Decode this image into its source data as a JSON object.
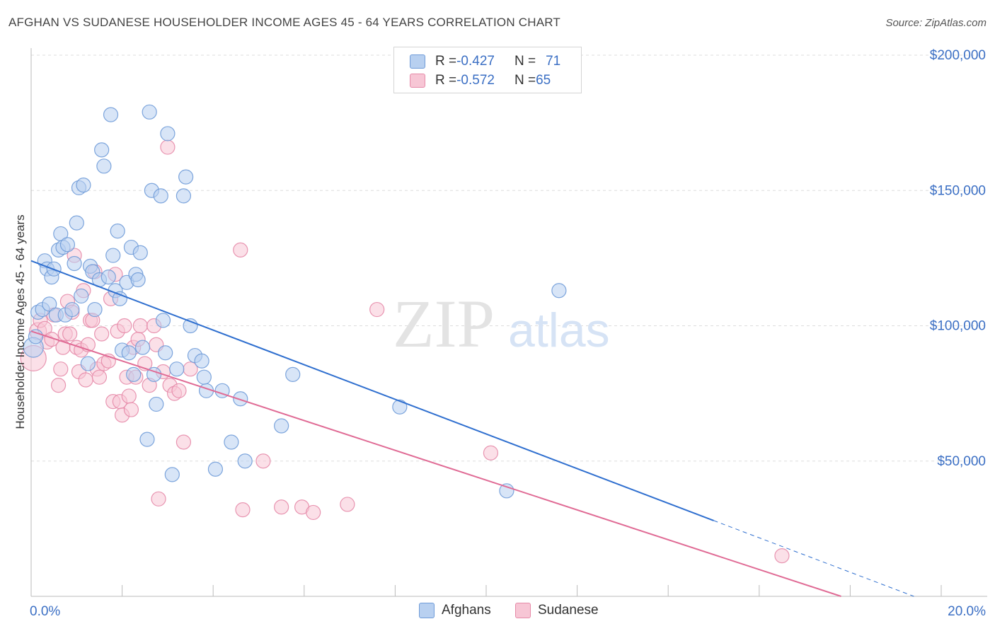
{
  "title": "AFGHAN VS SUDANESE HOUSEHOLDER INCOME AGES 45 - 64 YEARS CORRELATION CHART",
  "source": "Source: ZipAtlas.com",
  "watermark": {
    "zip": "ZIP",
    "atlas": "atlas"
  },
  "legend_top": {
    "rows": [
      {
        "r_label": "R = ",
        "r_value": "-0.427",
        "n_label": "N = ",
        "n_value": "71"
      },
      {
        "r_label": "R = ",
        "r_value": "-0.572",
        "n_label": "N = ",
        "n_value": "65"
      }
    ]
  },
  "legend_bottom": {
    "afghans": "Afghans",
    "sudanese": "Sudanese"
  },
  "colors": {
    "afghan_fill": "#b8d0f0",
    "afghan_stroke": "#6f9bd8",
    "afghan_line": "#2f6fcf",
    "sudanese_fill": "#f7c6d5",
    "sudanese_stroke": "#e68aa8",
    "sudanese_line": "#e06b95",
    "axis_label": "#3b6fc4",
    "grid": "#dddddd"
  },
  "chart_data": {
    "type": "scatter",
    "title": "AFGHAN VS SUDANESE HOUSEHOLDER INCOME AGES 45 - 64 YEARS CORRELATION CHART",
    "xlabel": "",
    "ylabel": "Householder Income Ages 45 - 64 years",
    "xlim": [
      0,
      20
    ],
    "ylim": [
      0,
      200000
    ],
    "x_tick_labels": [
      "0.0%",
      "20.0%"
    ],
    "y_ticks": [
      50000,
      100000,
      150000,
      200000
    ],
    "y_tick_labels": [
      "$50,000",
      "$100,000",
      "$150,000",
      "$200,000"
    ],
    "series": [
      {
        "name": "Afghans",
        "r": -0.427,
        "n": 71,
        "trend": {
          "x0": 0,
          "y0": 124000,
          "x1": 15.0,
          "y1": 28000,
          "dash_x1": 19.4,
          "dash_y1": 0
        },
        "points": [
          [
            0.05,
            92000,
            14
          ],
          [
            0.1,
            96000,
            10
          ],
          [
            0.15,
            105000,
            10
          ],
          [
            0.25,
            106000,
            10
          ],
          [
            0.3,
            124000,
            10
          ],
          [
            0.35,
            121000,
            10
          ],
          [
            0.4,
            108000,
            10
          ],
          [
            0.45,
            118000,
            10
          ],
          [
            0.5,
            121000,
            10
          ],
          [
            0.55,
            104000,
            10
          ],
          [
            0.6,
            128000,
            10
          ],
          [
            0.65,
            134000,
            10
          ],
          [
            0.7,
            129000,
            10
          ],
          [
            0.75,
            104000,
            10
          ],
          [
            0.8,
            130000,
            10
          ],
          [
            0.9,
            106000,
            10
          ],
          [
            0.95,
            123000,
            10
          ],
          [
            1.0,
            138000,
            10
          ],
          [
            1.05,
            151000,
            10
          ],
          [
            1.1,
            111000,
            10
          ],
          [
            1.15,
            152000,
            10
          ],
          [
            1.25,
            86000,
            10
          ],
          [
            1.3,
            122000,
            10
          ],
          [
            1.35,
            120000,
            10
          ],
          [
            1.4,
            106000,
            10
          ],
          [
            1.5,
            117000,
            10
          ],
          [
            1.55,
            165000,
            10
          ],
          [
            1.6,
            159000,
            10
          ],
          [
            1.7,
            118000,
            10
          ],
          [
            1.75,
            178000,
            10
          ],
          [
            1.8,
            126000,
            10
          ],
          [
            1.85,
            113000,
            10
          ],
          [
            1.9,
            135000,
            10
          ],
          [
            1.95,
            110000,
            10
          ],
          [
            2.0,
            91000,
            10
          ],
          [
            2.1,
            116000,
            10
          ],
          [
            2.15,
            90000,
            10
          ],
          [
            2.2,
            129000,
            10
          ],
          [
            2.25,
            82000,
            10
          ],
          [
            2.3,
            119000,
            10
          ],
          [
            2.35,
            117000,
            10
          ],
          [
            2.4,
            127000,
            10
          ],
          [
            2.45,
            92000,
            10
          ],
          [
            2.55,
            58000,
            10
          ],
          [
            2.6,
            179000,
            10
          ],
          [
            2.65,
            150000,
            10
          ],
          [
            2.7,
            82000,
            10
          ],
          [
            2.75,
            71000,
            10
          ],
          [
            2.85,
            148000,
            10
          ],
          [
            2.9,
            102000,
            10
          ],
          [
            2.95,
            90000,
            10
          ],
          [
            3.0,
            171000,
            10
          ],
          [
            3.1,
            45000,
            10
          ],
          [
            3.2,
            84000,
            10
          ],
          [
            3.35,
            148000,
            10
          ],
          [
            3.4,
            155000,
            10
          ],
          [
            3.5,
            100000,
            10
          ],
          [
            3.6,
            89000,
            10
          ],
          [
            3.75,
            87000,
            10
          ],
          [
            3.85,
            76000,
            10
          ],
          [
            3.8,
            81000,
            10
          ],
          [
            4.05,
            47000,
            10
          ],
          [
            4.2,
            76000,
            10
          ],
          [
            4.4,
            57000,
            10
          ],
          [
            4.6,
            73000,
            10
          ],
          [
            4.7,
            50000,
            10
          ],
          [
            5.5,
            63000,
            10
          ],
          [
            5.75,
            82000,
            10
          ],
          [
            8.1,
            70000,
            10
          ],
          [
            10.45,
            39000,
            10
          ],
          [
            11.6,
            113000,
            10
          ]
        ]
      },
      {
        "name": "Sudanese",
        "r": -0.572,
        "n": 65,
        "trend": {
          "x0": 0,
          "y0": 98000,
          "x1": 17.8,
          "y1": 0
        },
        "points": [
          [
            0.05,
            88000,
            18
          ],
          [
            0.15,
            98000,
            12
          ],
          [
            0.2,
            102000,
            10
          ],
          [
            0.3,
            99000,
            10
          ],
          [
            0.35,
            94000,
            10
          ],
          [
            0.45,
            95000,
            10
          ],
          [
            0.5,
            104000,
            10
          ],
          [
            0.6,
            78000,
            10
          ],
          [
            0.65,
            84000,
            10
          ],
          [
            0.7,
            92000,
            10
          ],
          [
            0.75,
            97000,
            10
          ],
          [
            0.8,
            109000,
            10
          ],
          [
            0.85,
            97000,
            10
          ],
          [
            0.9,
            105000,
            10
          ],
          [
            0.95,
            126000,
            10
          ],
          [
            1.0,
            92000,
            10
          ],
          [
            1.05,
            83000,
            10
          ],
          [
            1.1,
            91000,
            10
          ],
          [
            1.15,
            113000,
            10
          ],
          [
            1.2,
            80000,
            10
          ],
          [
            1.25,
            93000,
            10
          ],
          [
            1.3,
            102000,
            10
          ],
          [
            1.35,
            102000,
            10
          ],
          [
            1.4,
            120000,
            10
          ],
          [
            1.45,
            84000,
            10
          ],
          [
            1.5,
            81000,
            10
          ],
          [
            1.55,
            97000,
            10
          ],
          [
            1.6,
            86000,
            10
          ],
          [
            1.7,
            87000,
            10
          ],
          [
            1.75,
            110000,
            10
          ],
          [
            1.8,
            72000,
            10
          ],
          [
            1.85,
            119000,
            10
          ],
          [
            1.9,
            98000,
            10
          ],
          [
            1.95,
            72000,
            10
          ],
          [
            2.0,
            67000,
            10
          ],
          [
            2.05,
            100000,
            10
          ],
          [
            2.1,
            81000,
            10
          ],
          [
            2.15,
            74000,
            10
          ],
          [
            2.2,
            69000,
            10
          ],
          [
            2.25,
            92000,
            10
          ],
          [
            2.3,
            81000,
            10
          ],
          [
            2.35,
            95000,
            10
          ],
          [
            2.4,
            100000,
            10
          ],
          [
            2.5,
            86000,
            10
          ],
          [
            2.6,
            78000,
            10
          ],
          [
            2.7,
            100000,
            10
          ],
          [
            2.75,
            93000,
            10
          ],
          [
            2.8,
            36000,
            10
          ],
          [
            2.9,
            83000,
            10
          ],
          [
            3.0,
            166000,
            10
          ],
          [
            3.05,
            78000,
            10
          ],
          [
            3.15,
            75000,
            10
          ],
          [
            3.25,
            76000,
            10
          ],
          [
            3.35,
            57000,
            10
          ],
          [
            3.5,
            84000,
            10
          ],
          [
            4.6,
            128000,
            10
          ],
          [
            4.65,
            32000,
            10
          ],
          [
            5.1,
            50000,
            10
          ],
          [
            5.5,
            33000,
            10
          ],
          [
            5.95,
            33000,
            10
          ],
          [
            6.2,
            31000,
            10
          ],
          [
            6.95,
            34000,
            10
          ],
          [
            7.6,
            106000,
            10
          ],
          [
            10.1,
            53000,
            10
          ],
          [
            16.5,
            15000,
            10
          ]
        ]
      }
    ]
  }
}
